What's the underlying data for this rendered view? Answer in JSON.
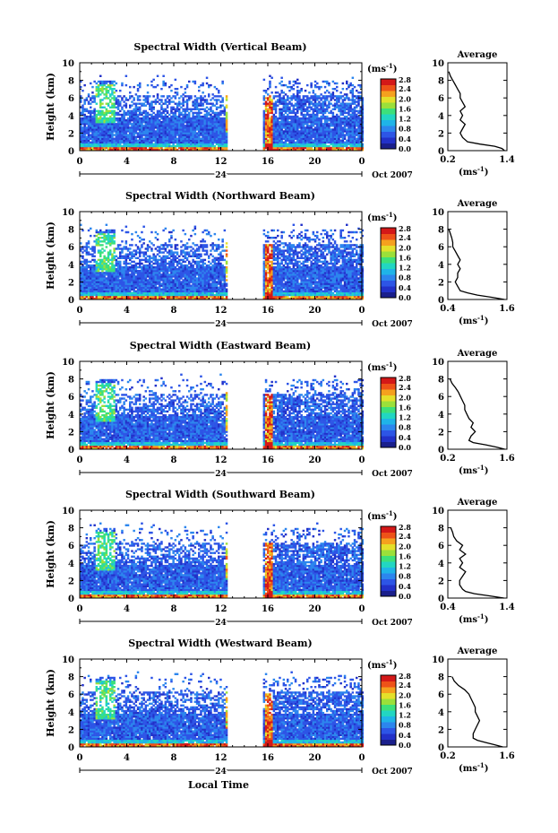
{
  "figure": {
    "xlabel": "Local Time",
    "date_label": "Oct 2007",
    "day_marker": "24",
    "colorbar_unit": "(ms",
    "unit_sup": "-1",
    "unit_close": ")",
    "avg_title": "Average",
    "avg_unit_open": "(ms",
    "avg_unit_close": ")"
  },
  "chart_data": [
    {
      "type": "heatmap",
      "title": "Spectral Width (Vertical Beam)",
      "ylabel": "Height (km)",
      "xlabel": "Local Time",
      "x_ticks": [
        "0",
        "4",
        "8",
        "12",
        "16",
        "20",
        "0"
      ],
      "y_ticks": [
        "0",
        "2",
        "4",
        "6",
        "8",
        "10"
      ],
      "ylim": [
        0,
        10
      ],
      "xlim": [
        0,
        24
      ],
      "colorbar_ticks": [
        "0.0",
        "0.4",
        "0.8",
        "1.2",
        "1.6",
        "2.0",
        "2.4",
        "2.8"
      ],
      "colorbar_range": [
        0,
        2.8
      ],
      "gap_hours": [
        12.5,
        15.5
      ],
      "colors": [
        "#1a1f8c",
        "#2231c9",
        "#2d55e6",
        "#2c86ee",
        "#1fb4e8",
        "#22d6c2",
        "#3de07a",
        "#9be03a",
        "#e4e02a",
        "#f5a11e",
        "#ee5218",
        "#d41818"
      ],
      "average": {
        "title": "Average",
        "x_ticks": [
          "0.2",
          "1.4"
        ],
        "xlim": [
          0.2,
          1.4
        ],
        "height_km": [
          0,
          0.25,
          0.5,
          0.75,
          1,
          1.5,
          2,
          2.5,
          3,
          3.5,
          4,
          4.5,
          5,
          5.5,
          6,
          6.5,
          7,
          7.5,
          8,
          8.5,
          9
        ],
        "width": [
          1.35,
          1.3,
          1.15,
          0.85,
          0.6,
          0.5,
          0.45,
          0.5,
          0.55,
          0.45,
          0.5,
          0.45,
          0.55,
          0.5,
          0.45,
          0.45,
          0.4,
          0.35,
          0.3,
          0.25,
          0.22
        ]
      }
    },
    {
      "type": "heatmap",
      "title": "Spectral Width (Northward Beam)",
      "ylabel": "Height (km)",
      "xlabel": "Local Time",
      "x_ticks": [
        "0",
        "4",
        "8",
        "12",
        "16",
        "20",
        "0"
      ],
      "y_ticks": [
        "0",
        "2",
        "4",
        "6",
        "8",
        "10"
      ],
      "ylim": [
        0,
        10
      ],
      "xlim": [
        0,
        24
      ],
      "colorbar_ticks": [
        "0.0",
        "0.4",
        "0.8",
        "1.2",
        "1.6",
        "2.0",
        "2.4",
        "2.8"
      ],
      "colorbar_range": [
        0,
        2.8
      ],
      "gap_hours": [
        12.5,
        15.5
      ],
      "average": {
        "title": "Average",
        "x_ticks": [
          "0.4",
          "1.6"
        ],
        "xlim": [
          0.4,
          1.6
        ],
        "height_km": [
          0,
          0.25,
          0.5,
          0.75,
          1,
          1.5,
          2,
          2.5,
          3,
          3.5,
          4,
          4.5,
          5,
          5.5,
          6,
          6.5,
          7,
          7.5,
          8
        ],
        "width": [
          1.55,
          1.3,
          1.0,
          0.8,
          0.65,
          0.6,
          0.55,
          0.6,
          0.6,
          0.65,
          0.6,
          0.65,
          0.6,
          0.55,
          0.5,
          0.5,
          0.48,
          0.45,
          0.42
        ]
      }
    },
    {
      "type": "heatmap",
      "title": "Spectral Width (Eastward Beam)",
      "ylabel": "Height (km)",
      "xlabel": "Local Time",
      "x_ticks": [
        "0",
        "4",
        "8",
        "12",
        "16",
        "20",
        "0"
      ],
      "y_ticks": [
        "0",
        "2",
        "4",
        "6",
        "8",
        "10"
      ],
      "ylim": [
        0,
        10
      ],
      "xlim": [
        0,
        24
      ],
      "colorbar_ticks": [
        "0.0",
        "0.4",
        "0.8",
        "1.2",
        "1.6",
        "2.0",
        "2.4",
        "2.8"
      ],
      "colorbar_range": [
        0,
        2.8
      ],
      "gap_hours": [
        12.5,
        15.5
      ],
      "average": {
        "title": "Average",
        "x_ticks": [
          "0.2",
          "1.6"
        ],
        "xlim": [
          0.2,
          1.6
        ],
        "height_km": [
          0,
          0.25,
          0.5,
          0.75,
          1,
          1.5,
          2,
          2.5,
          3,
          3.5,
          4,
          4.5,
          5,
          5.5,
          6,
          6.5,
          7,
          7.5,
          8
        ],
        "width": [
          1.55,
          1.35,
          1.1,
          0.8,
          0.7,
          0.75,
          0.85,
          0.75,
          0.8,
          0.7,
          0.65,
          0.6,
          0.6,
          0.55,
          0.5,
          0.45,
          0.38,
          0.3,
          0.25
        ]
      }
    },
    {
      "type": "heatmap",
      "title": "Spectral Width (Southward Beam)",
      "ylabel": "Height (km)",
      "xlabel": "Local Time",
      "x_ticks": [
        "0",
        "4",
        "8",
        "12",
        "16",
        "20",
        "0"
      ],
      "y_ticks": [
        "0",
        "2",
        "4",
        "6",
        "8",
        "10"
      ],
      "ylim": [
        0,
        10
      ],
      "xlim": [
        0,
        24
      ],
      "colorbar_ticks": [
        "0.0",
        "0.4",
        "0.8",
        "1.2",
        "1.6",
        "2.0",
        "2.4",
        "2.8"
      ],
      "colorbar_range": [
        0,
        2.8
      ],
      "gap_hours": [
        12.5,
        15.5
      ],
      "average": {
        "title": "Average",
        "x_ticks": [
          "0.4",
          "1.4"
        ],
        "xlim": [
          0.4,
          1.4
        ],
        "height_km": [
          0,
          0.25,
          0.5,
          0.75,
          1,
          1.5,
          2,
          2.5,
          3,
          3.5,
          4,
          4.5,
          5,
          5.5,
          6,
          6.5,
          7,
          7.5,
          8
        ],
        "width": [
          1.35,
          1.1,
          0.85,
          0.7,
          0.65,
          0.6,
          0.6,
          0.65,
          0.7,
          0.6,
          0.65,
          0.6,
          0.7,
          0.6,
          0.65,
          0.55,
          0.5,
          0.48,
          0.45
        ]
      }
    },
    {
      "type": "heatmap",
      "title": "Spectral Width (Westward Beam)",
      "ylabel": "Height (km)",
      "xlabel": "Local Time",
      "x_ticks": [
        "0",
        "4",
        "8",
        "12",
        "16",
        "20",
        "0"
      ],
      "y_ticks": [
        "0",
        "2",
        "4",
        "6",
        "8",
        "10"
      ],
      "ylim": [
        0,
        10
      ],
      "xlim": [
        0,
        24
      ],
      "colorbar_ticks": [
        "0.0",
        "0.4",
        "0.8",
        "1.2",
        "1.6",
        "2.0",
        "2.4",
        "2.8"
      ],
      "colorbar_range": [
        0,
        2.8
      ],
      "gap_hours": [
        12.5,
        15.5
      ],
      "average": {
        "title": "Average",
        "x_ticks": [
          "0.2",
          "1.6"
        ],
        "xlim": [
          0.2,
          1.6
        ],
        "height_km": [
          0,
          0.25,
          0.5,
          0.75,
          1,
          1.5,
          2,
          2.5,
          3,
          3.5,
          4,
          4.5,
          5,
          5.5,
          6,
          6.5,
          7,
          7.5,
          8
        ],
        "width": [
          1.5,
          1.3,
          1.1,
          0.9,
          0.8,
          0.8,
          0.85,
          0.9,
          0.95,
          0.9,
          0.85,
          0.85,
          0.8,
          0.75,
          0.7,
          0.6,
          0.45,
          0.35,
          0.3
        ]
      }
    }
  ]
}
